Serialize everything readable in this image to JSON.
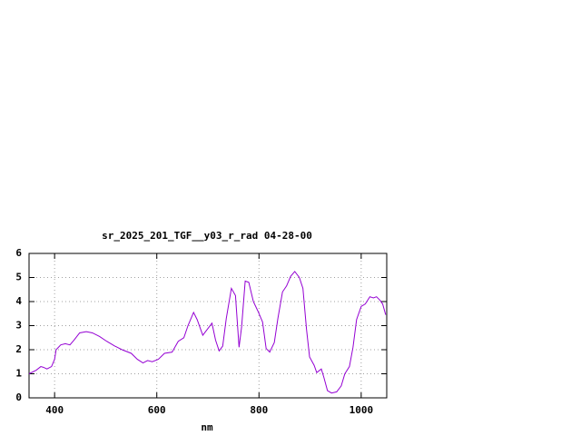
{
  "chart_data": {
    "type": "line",
    "title": "sr_2025_201_TGF__y03_r_rad 04-28-00",
    "x_label": "nm",
    "x": [
      350,
      364,
      373,
      378,
      385,
      394,
      400,
      403,
      412,
      421,
      430,
      438,
      449,
      462,
      474,
      488,
      502,
      518,
      532,
      550,
      562,
      573,
      582,
      591,
      603,
      615,
      630,
      642,
      653,
      661,
      672,
      679,
      690,
      699,
      708,
      715,
      722,
      729,
      736,
      746,
      754,
      761,
      766,
      773,
      780,
      789,
      798,
      807,
      814,
      821,
      830,
      837,
      846,
      854,
      862,
      870,
      879,
      886,
      893,
      899,
      908,
      913,
      922,
      927,
      934,
      942,
      952,
      961,
      968,
      977,
      984,
      991,
      1000,
      1008,
      1017,
      1024,
      1030,
      1037,
      1042,
      1048
    ],
    "values": [
      1.0,
      1.15,
      1.3,
      1.27,
      1.2,
      1.3,
      1.6,
      2.0,
      2.2,
      2.25,
      2.2,
      2.4,
      2.7,
      2.75,
      2.7,
      2.55,
      2.35,
      2.15,
      2.0,
      1.85,
      1.6,
      1.45,
      1.55,
      1.5,
      1.6,
      1.85,
      1.9,
      2.35,
      2.5,
      3.0,
      3.55,
      3.25,
      2.6,
      2.85,
      3.1,
      2.4,
      1.95,
      2.15,
      3.3,
      4.55,
      4.25,
      2.1,
      2.95,
      4.85,
      4.8,
      4.0,
      3.6,
      3.15,
      2.05,
      1.9,
      2.3,
      3.3,
      4.4,
      4.65,
      5.05,
      5.25,
      5.0,
      4.55,
      2.85,
      1.7,
      1.35,
      1.05,
      1.2,
      0.85,
      0.3,
      0.2,
      0.25,
      0.5,
      1.0,
      1.3,
      2.1,
      3.25,
      3.8,
      3.9,
      4.2,
      4.15,
      4.2,
      4.05,
      3.9,
      3.45
    ],
    "color": "#9400d3",
    "xlim": [
      350,
      1050
    ],
    "xticks": [
      400,
      600,
      800,
      1000
    ],
    "ylim": [
      0,
      6
    ],
    "yticks": [
      0,
      1,
      2,
      3,
      4,
      5,
      6
    ],
    "grid": true
  }
}
